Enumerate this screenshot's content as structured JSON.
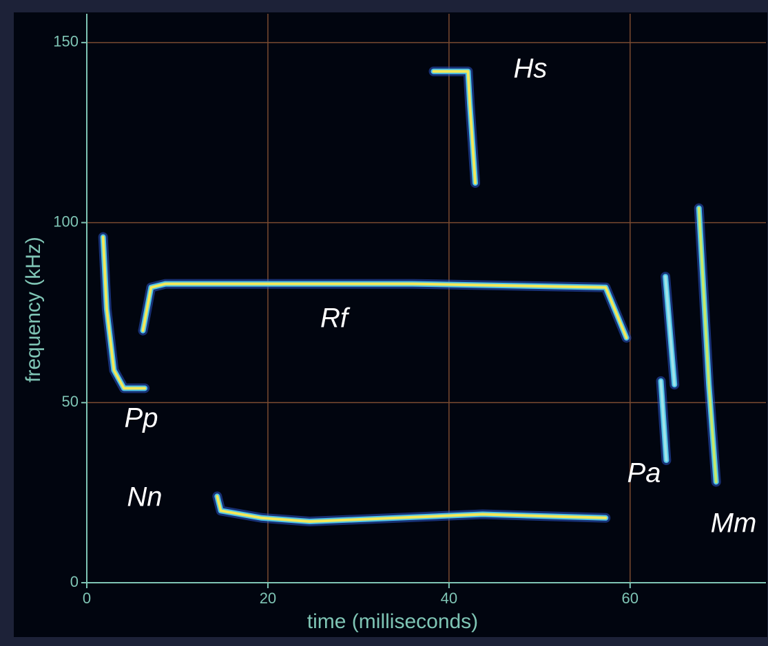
{
  "chart_data": {
    "type": "line",
    "x_label": "time (milliseconds)",
    "y_label": "frequency (kHz)",
    "xlim": [
      0,
      75
    ],
    "ylim": [
      0,
      158
    ],
    "xticks": [
      0,
      20,
      40,
      60
    ],
    "yticks": [
      0,
      50,
      100,
      150
    ],
    "grid": true,
    "color": "#f2e85a",
    "series": [
      {
        "name": "Pp",
        "color": "#f2e85a",
        "x": [
          1.8,
          2.2,
          3.0,
          4.1,
          6.4
        ],
        "values": [
          96,
          76,
          59,
          54,
          54
        ]
      },
      {
        "name": "Rf",
        "color": "#f2e85a",
        "x": [
          6.2,
          7.1,
          8.7,
          36,
          57.3,
          59.6
        ],
        "values": [
          70,
          82,
          83,
          83,
          82,
          68
        ]
      },
      {
        "name": "Hs",
        "color": "#f2e85a",
        "x": [
          38.3,
          42.1,
          42.3,
          42.9
        ],
        "values": [
          142,
          142,
          133,
          111
        ]
      },
      {
        "name": "Nn",
        "color": "#f2e85a",
        "x": [
          14.4,
          14.8,
          19.3,
          24.6,
          43.7,
          57.3
        ],
        "values": [
          24,
          20,
          18,
          17,
          19,
          18
        ]
      },
      {
        "name": "Pa",
        "color": "#9fe3e8",
        "x": [
          63.9,
          64.9,
          null,
          63.4,
          64.0
        ],
        "values": [
          85,
          55,
          null,
          56,
          34
        ]
      },
      {
        "name": "Mm",
        "color": "#c6e86a",
        "x": [
          67.6,
          68.7,
          69.5
        ],
        "values": [
          104,
          55,
          28
        ]
      }
    ]
  }
}
